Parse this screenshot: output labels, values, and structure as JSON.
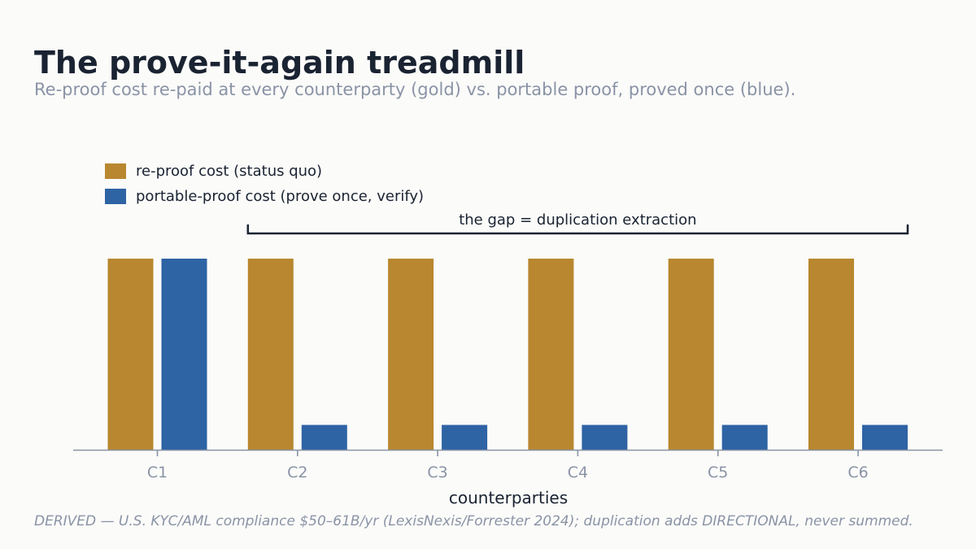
{
  "title": "The prove-it-again treadmill",
  "subtitle": "Re-proof cost re-paid at every counterparty (gold) vs. portable proof, proved once (blue).",
  "footnote": "DERIVED — U.S. KYC/AML compliance $50–61B/yr (LexisNexis/Forrester 2024); duplication adds DIRECTIONAL, never summed.",
  "colors": {
    "gold": "#b8872f",
    "blue": "#2e63a4",
    "axis": "#8a93a6",
    "text_dark": "#1a2332",
    "background": "#fbfbf9"
  },
  "chart_data": {
    "type": "bar",
    "categories": [
      "C1",
      "C2",
      "C3",
      "C4",
      "C5",
      "C6"
    ],
    "series": [
      {
        "name": "re-proof cost (status quo)",
        "color": "#b8872f",
        "values": [
          1,
          1,
          1,
          1,
          1,
          1
        ]
      },
      {
        "name": "portable-proof cost (prove once, verify)",
        "color": "#2e63a4",
        "values": [
          1,
          0.13,
          0.13,
          0.13,
          0.13,
          0.13
        ]
      }
    ],
    "xlabel": "counterparties",
    "ylabel": "",
    "ylim": [
      0,
      1
    ],
    "grid": false,
    "legend_position": "top-left",
    "annotation": {
      "text": "the gap = duplication extraction",
      "span_categories": [
        "C2",
        "C6"
      ],
      "style": "bracket"
    }
  }
}
